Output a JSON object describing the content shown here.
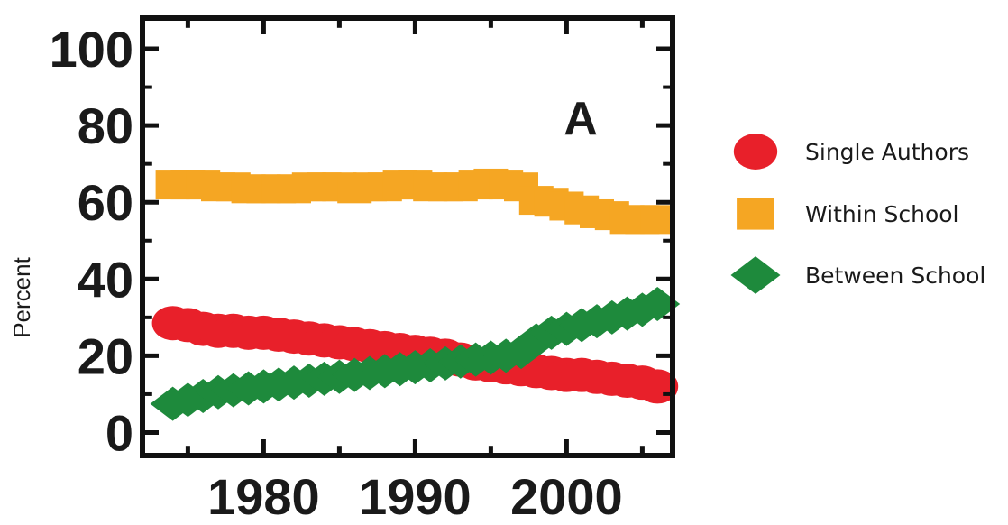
{
  "chart_data": {
    "type": "scatter",
    "ylabel": "Percent",
    "panel_label": "A",
    "xlim": [
      1972,
      2007
    ],
    "ylim": [
      -6,
      108
    ],
    "xticks": [
      1980,
      1990,
      2000
    ],
    "yticks": [
      0,
      20,
      40,
      60,
      80,
      100
    ],
    "legend_position": "right",
    "series": [
      {
        "name": "Single Authors",
        "marker": "circle",
        "color": "#e8202a",
        "x": [
          1974,
          1975,
          1976,
          1977,
          1978,
          1979,
          1980,
          1981,
          1982,
          1983,
          1984,
          1985,
          1986,
          1987,
          1988,
          1989,
          1990,
          1991,
          1992,
          1993,
          1994,
          1995,
          1996,
          1997,
          1998,
          1999,
          2000,
          2001,
          2002,
          2003,
          2004,
          2005,
          2006
        ],
        "y": [
          28.5,
          28,
          27,
          26.5,
          26.5,
          26,
          26,
          25.5,
          25,
          24.5,
          24,
          23.5,
          23,
          22.5,
          22,
          21.5,
          21,
          20.5,
          20,
          19,
          18,
          17.5,
          17,
          16.5,
          16,
          15.5,
          15,
          15,
          14.5,
          14,
          13.5,
          13,
          12
        ]
      },
      {
        "name": "Within School",
        "marker": "square",
        "color": "#f5a623",
        "x": [
          1974,
          1975,
          1976,
          1977,
          1978,
          1979,
          1980,
          1981,
          1982,
          1983,
          1984,
          1985,
          1986,
          1987,
          1988,
          1989,
          1990,
          1991,
          1992,
          1993,
          1994,
          1995,
          1996,
          1997,
          1998,
          1999,
          2000,
          2001,
          2002,
          2003,
          2004,
          2005,
          2006
        ],
        "y": [
          64.5,
          64.5,
          64.5,
          64,
          64,
          63.5,
          63.5,
          63.5,
          63.5,
          64,
          64,
          64,
          63.5,
          64,
          64,
          64.5,
          64.5,
          64,
          64,
          64,
          64.5,
          65,
          64.5,
          64,
          60.5,
          60,
          59,
          58,
          57,
          56.5,
          55.5,
          55.5,
          55.5
        ]
      },
      {
        "name": "Between School",
        "marker": "diamond",
        "color": "#1e8a3c",
        "x": [
          1974,
          1975,
          1976,
          1977,
          1978,
          1979,
          1980,
          1981,
          1982,
          1983,
          1984,
          1985,
          1986,
          1987,
          1988,
          1989,
          1990,
          1991,
          1992,
          1993,
          1994,
          1995,
          1996,
          1997,
          1998,
          1999,
          2000,
          2001,
          2002,
          2003,
          2004,
          2005,
          2006
        ],
        "y": [
          7.5,
          8.5,
          9.5,
          10.5,
          11,
          11.5,
          12,
          12.5,
          13,
          13.5,
          14,
          14.5,
          15,
          15.5,
          16,
          16.5,
          17,
          17.5,
          18,
          18.5,
          19,
          19.5,
          20,
          21,
          24,
          26,
          27,
          28,
          29,
          30,
          31,
          32,
          33.5
        ]
      }
    ]
  }
}
